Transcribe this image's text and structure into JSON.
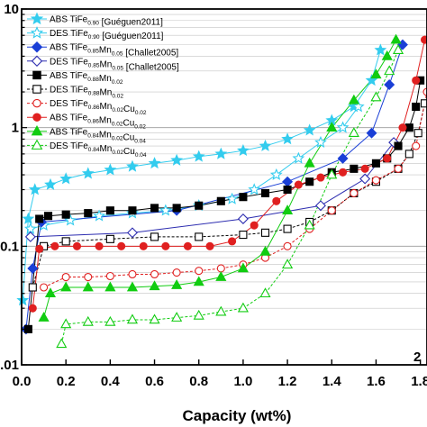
{
  "chart_data": {
    "type": "scatter",
    "title": "",
    "xlabel": "Capacity (wt%)",
    "ylabel": "",
    "x_ticks": [
      "0.0",
      "0.2",
      "0.4",
      "0.6",
      "0.8",
      "1.0",
      "1.2",
      "1.4",
      "1.6",
      "1.8"
    ],
    "y_ticks": [
      "10",
      "1",
      "0.1",
      "0.01"
    ],
    "xlim": [
      0.0,
      1.83
    ],
    "ylim": [
      0.01,
      10
    ],
    "y_scale": "log",
    "grid": "horizontal minor and major lines",
    "corner_label": "2",
    "legend_position": "top-left",
    "series": [
      {
        "label_main": "ABS TiFe",
        "sub1": "0.90",
        "label_rest": "",
        "sub2": "",
        "label_tail": "",
        "sub3": "",
        "ref": "[Guéguen2011]",
        "color": "#33ccee",
        "marker": "star",
        "fill": true,
        "dashed": false,
        "x": [
          0.005,
          0.03,
          0.06,
          0.13,
          0.2,
          0.3,
          0.4,
          0.5,
          0.6,
          0.7,
          0.8,
          0.9,
          1.0,
          1.1,
          1.2,
          1.3,
          1.4,
          1.5,
          1.58,
          1.62
        ],
        "y": [
          0.035,
          0.17,
          0.3,
          0.33,
          0.37,
          0.41,
          0.44,
          0.47,
          0.5,
          0.53,
          0.57,
          0.6,
          0.64,
          0.7,
          0.8,
          0.95,
          1.15,
          1.5,
          2.5,
          4.5
        ]
      },
      {
        "label_main": "DES TiFe",
        "sub1": "0.90",
        "label_rest": "",
        "sub2": "",
        "label_tail": "",
        "sub3": "",
        "ref": "[Guéguen2011]",
        "color": "#33ccee",
        "marker": "star",
        "fill": false,
        "dashed": false,
        "x": [
          0.04,
          0.1,
          0.22,
          0.35,
          0.5,
          0.65,
          0.8,
          0.95,
          1.05,
          1.15,
          1.25,
          1.35,
          1.45,
          1.52
        ],
        "y": [
          0.14,
          0.15,
          0.165,
          0.18,
          0.19,
          0.2,
          0.22,
          0.25,
          0.3,
          0.4,
          0.55,
          0.75,
          1.0,
          1.5
        ]
      },
      {
        "label_main": "ABS TiFe",
        "sub1": "0.85",
        "label_rest": "Mn",
        "sub2": "0.05",
        "label_tail": "",
        "sub3": "",
        "ref": "[Challet2005]",
        "color": "#1a3fd6",
        "marker": "diamond",
        "fill": true,
        "dashed": false,
        "x": [
          0.02,
          0.05,
          0.09,
          0.7,
          1.2,
          1.45,
          1.58,
          1.66,
          1.72
        ],
        "y": [
          0.02,
          0.065,
          0.16,
          0.2,
          0.35,
          0.55,
          0.9,
          2.3,
          5.0
        ]
      },
      {
        "label_main": "DES TiFe",
        "sub1": "0.85",
        "label_rest": "Mn",
        "sub2": "0.05",
        "label_tail": "",
        "sub3": "",
        "ref": "[Challet2005]",
        "color": "#2d2db0",
        "marker": "diamond",
        "fill": false,
        "dashed": false,
        "x": [
          0.04,
          0.5,
          1.0,
          1.35,
          1.55,
          1.68
        ],
        "y": [
          0.12,
          0.13,
          0.17,
          0.22,
          0.37,
          0.75
        ]
      },
      {
        "label_main": "ABS TiFe",
        "sub1": "0.88",
        "label_rest": "Mn",
        "sub2": "0.02",
        "label_tail": "",
        "sub3": "",
        "ref": "",
        "color": "#000000",
        "marker": "square",
        "fill": true,
        "dashed": false,
        "x": [
          0.03,
          0.08,
          0.12,
          0.2,
          0.3,
          0.4,
          0.5,
          0.6,
          0.7,
          0.8,
          0.9,
          1.0,
          1.1,
          1.2,
          1.3,
          1.4,
          1.5,
          1.6,
          1.65,
          1.7,
          1.75,
          1.78,
          1.8
        ],
        "y": [
          0.02,
          0.17,
          0.18,
          0.185,
          0.19,
          0.2,
          0.2,
          0.21,
          0.21,
          0.22,
          0.24,
          0.26,
          0.28,
          0.3,
          0.35,
          0.42,
          0.45,
          0.5,
          0.55,
          0.7,
          1.0,
          1.5,
          2.5
        ]
      },
      {
        "label_main": "DES TiFe",
        "sub1": "0.88",
        "label_rest": "Mn",
        "sub2": "0.02",
        "label_tail": "",
        "sub3": "",
        "ref": "",
        "color": "#000000",
        "marker": "square",
        "fill": false,
        "dashed": true,
        "x": [
          0.05,
          0.1,
          0.2,
          0.4,
          0.6,
          0.8,
          1.0,
          1.1,
          1.2,
          1.3,
          1.4,
          1.5,
          1.6,
          1.7,
          1.75,
          1.79,
          1.82
        ],
        "y": [
          0.045,
          0.1,
          0.11,
          0.115,
          0.12,
          0.12,
          0.125,
          0.13,
          0.14,
          0.16,
          0.2,
          0.28,
          0.35,
          0.45,
          0.6,
          0.9,
          1.6
        ]
      },
      {
        "label_main": "DES TiFe",
        "sub1": "0.86",
        "label_rest": "Mn",
        "sub2": "0.02",
        "label_tail": "Cu",
        "sub3": "0.02",
        "ref": "",
        "color": "#e02020",
        "marker": "circle",
        "fill": false,
        "dashed": true,
        "x": [
          0.1,
          0.2,
          0.3,
          0.4,
          0.5,
          0.6,
          0.7,
          0.8,
          0.9,
          1.0,
          1.1,
          1.2,
          1.3,
          1.4,
          1.5,
          1.6,
          1.7,
          1.78,
          1.83
        ],
        "y": [
          0.045,
          0.055,
          0.055,
          0.056,
          0.058,
          0.058,
          0.06,
          0.062,
          0.065,
          0.07,
          0.08,
          0.1,
          0.14,
          0.2,
          0.28,
          0.36,
          0.45,
          0.7,
          2.0
        ]
      },
      {
        "label_main": "ABS TiFe",
        "sub1": "0.86",
        "label_rest": "Mn",
        "sub2": "0.02",
        "label_tail": "Cu",
        "sub3": "0.02",
        "ref": "",
        "color": "#e02020",
        "marker": "circle",
        "fill": true,
        "dashed": false,
        "x": [
          0.05,
          0.08,
          0.15,
          0.25,
          0.35,
          0.45,
          0.55,
          0.65,
          0.75,
          0.85,
          0.95,
          1.05,
          1.15,
          1.25,
          1.35,
          1.45,
          1.55,
          1.65,
          1.72,
          1.78,
          1.82
        ],
        "y": [
          0.03,
          0.095,
          0.1,
          0.1,
          0.1,
          0.1,
          0.1,
          0.1,
          0.1,
          0.1,
          0.11,
          0.15,
          0.24,
          0.33,
          0.38,
          0.42,
          0.45,
          0.55,
          1.0,
          2.5,
          5.5
        ]
      },
      {
        "label_main": "ABS TiFe",
        "sub1": "0.84",
        "label_rest": "Mn",
        "sub2": "0.02",
        "label_tail": "Cu",
        "sub3": "0.04",
        "ref": "",
        "color": "#11cc11",
        "marker": "triangle",
        "fill": true,
        "dashed": false,
        "x": [
          0.1,
          0.13,
          0.2,
          0.3,
          0.4,
          0.5,
          0.6,
          0.7,
          0.8,
          0.9,
          1.0,
          1.1,
          1.2,
          1.3,
          1.4,
          1.5,
          1.6,
          1.65,
          1.69
        ],
        "y": [
          0.025,
          0.04,
          0.045,
          0.045,
          0.045,
          0.045,
          0.046,
          0.047,
          0.05,
          0.055,
          0.065,
          0.09,
          0.2,
          0.5,
          1.0,
          1.7,
          2.8,
          4.0,
          5.5
        ]
      },
      {
        "label_main": "DES TiFe",
        "sub1": "0.84",
        "label_rest": "Mn",
        "sub2": "0.02",
        "label_tail": "Cu",
        "sub3": "0.04",
        "ref": "",
        "color": "#11cc11",
        "marker": "triangle",
        "fill": false,
        "dashed": true,
        "x": [
          0.18,
          0.2,
          0.3,
          0.4,
          0.5,
          0.6,
          0.7,
          0.8,
          0.9,
          1.0,
          1.1,
          1.2,
          1.3,
          1.4,
          1.5,
          1.6,
          1.66,
          1.7
        ],
        "y": [
          0.015,
          0.022,
          0.023,
          0.023,
          0.024,
          0.024,
          0.025,
          0.026,
          0.028,
          0.03,
          0.04,
          0.07,
          0.15,
          0.4,
          0.9,
          1.8,
          3.0,
          4.5
        ]
      }
    ]
  }
}
